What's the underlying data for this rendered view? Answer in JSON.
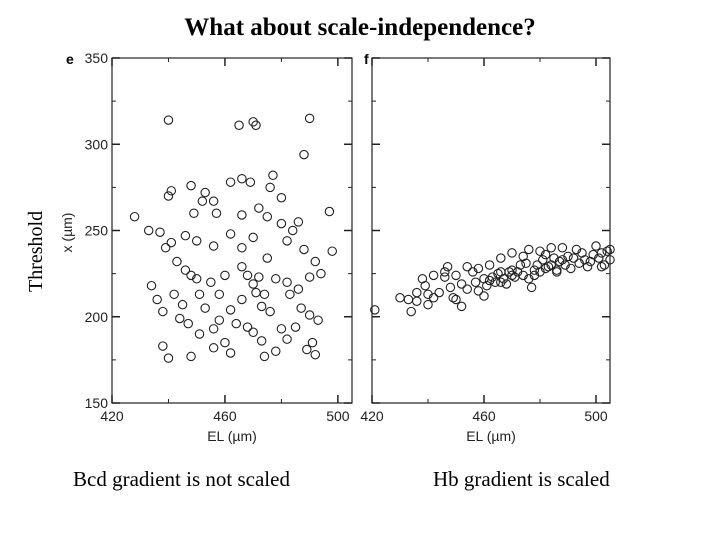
{
  "slide": {
    "title": "What about scale-independence?",
    "side_label": "Threshold",
    "captions": [
      "Bcd gradient is not scaled",
      "Hb gradient is scaled"
    ]
  },
  "chart_data": [
    {
      "type": "scatter",
      "panel_letter": "e",
      "xlabel": "EL (µm)",
      "ylabel": "x (µm)",
      "xlim": [
        420,
        505
      ],
      "ylim": [
        150,
        350
      ],
      "x_ticks": [
        420,
        460,
        500
      ],
      "y_ticks": [
        150,
        200,
        250,
        300,
        350
      ],
      "marker": "open-circle",
      "points": [
        [
          440,
          314
        ],
        [
          470,
          313
        ],
        [
          471,
          311
        ],
        [
          465,
          311
        ],
        [
          490,
          315
        ],
        [
          488,
          294
        ],
        [
          466,
          280
        ],
        [
          462,
          278
        ],
        [
          448,
          276
        ],
        [
          441,
          273
        ],
        [
          440,
          270
        ],
        [
          476,
          275
        ],
        [
          477,
          282
        ],
        [
          469,
          278
        ],
        [
          480,
          269
        ],
        [
          453,
          272
        ],
        [
          452,
          267
        ],
        [
          457,
          260
        ],
        [
          456,
          267
        ],
        [
          449,
          260
        ],
        [
          466,
          259
        ],
        [
          472,
          263
        ],
        [
          475,
          258
        ],
        [
          480,
          254
        ],
        [
          486,
          255
        ],
        [
          497,
          261
        ],
        [
          428,
          258
        ],
        [
          433,
          250
        ],
        [
          437,
          249
        ],
        [
          439,
          240
        ],
        [
          441,
          243
        ],
        [
          443,
          232
        ],
        [
          446,
          247
        ],
        [
          450,
          244
        ],
        [
          456,
          241
        ],
        [
          462,
          248
        ],
        [
          466,
          240
        ],
        [
          470,
          246
        ],
        [
          475,
          234
        ],
        [
          482,
          244
        ],
        [
          484,
          250
        ],
        [
          488,
          239
        ],
        [
          492,
          232
        ],
        [
          494,
          225
        ],
        [
          498,
          238
        ],
        [
          446,
          227
        ],
        [
          448,
          224
        ],
        [
          450,
          222
        ],
        [
          455,
          220
        ],
        [
          460,
          224
        ],
        [
          466,
          229
        ],
        [
          468,
          224
        ],
        [
          470,
          219
        ],
        [
          472,
          223
        ],
        [
          474,
          213
        ],
        [
          478,
          222
        ],
        [
          482,
          220
        ],
        [
          486,
          216
        ],
        [
          490,
          223
        ],
        [
          434,
          218
        ],
        [
          436,
          210
        ],
        [
          442,
          213
        ],
        [
          445,
          207
        ],
        [
          451,
          213
        ],
        [
          453,
          205
        ],
        [
          458,
          213
        ],
        [
          462,
          204
        ],
        [
          466,
          210
        ],
        [
          471,
          214
        ],
        [
          473,
          206
        ],
        [
          476,
          203
        ],
        [
          483,
          213
        ],
        [
          487,
          205
        ],
        [
          490,
          201
        ],
        [
          493,
          198
        ],
        [
          438,
          203
        ],
        [
          447,
          196
        ],
        [
          451,
          190
        ],
        [
          456,
          193
        ],
        [
          460,
          185
        ],
        [
          464,
          196
        ],
        [
          468,
          194
        ],
        [
          470,
          191
        ],
        [
          473,
          186
        ],
        [
          478,
          180
        ],
        [
          482,
          187
        ],
        [
          485,
          194
        ],
        [
          489,
          181
        ],
        [
          492,
          178
        ],
        [
          440,
          176
        ],
        [
          448,
          177
        ],
        [
          456,
          182
        ],
        [
          462,
          179
        ],
        [
          474,
          177
        ],
        [
          480,
          193
        ],
        [
          491,
          185
        ],
        [
          438,
          183
        ],
        [
          444,
          199
        ],
        [
          458,
          198
        ]
      ]
    },
    {
      "type": "scatter",
      "panel_letter": "f",
      "xlabel": "EL (µm)",
      "ylabel": "",
      "xlim": [
        420,
        505
      ],
      "ylim": [
        150,
        350
      ],
      "x_ticks": [
        420,
        460,
        500
      ],
      "y_ticks": [
        150,
        200,
        250,
        300,
        350
      ],
      "marker": "open-circle",
      "points": [
        [
          421,
          204
        ],
        [
          430,
          211
        ],
        [
          433,
          210
        ],
        [
          434,
          203
        ],
        [
          436,
          214
        ],
        [
          439,
          218
        ],
        [
          440,
          213
        ],
        [
          442,
          211
        ],
        [
          444,
          214
        ],
        [
          446,
          223
        ],
        [
          447,
          229
        ],
        [
          448,
          217
        ],
        [
          449,
          211
        ],
        [
          450,
          210
        ],
        [
          452,
          206
        ],
        [
          454,
          216
        ],
        [
          456,
          226
        ],
        [
          457,
          220
        ],
        [
          458,
          215
        ],
        [
          460,
          212
        ],
        [
          461,
          218
        ],
        [
          462,
          221
        ],
        [
          463,
          223
        ],
        [
          464,
          220
        ],
        [
          465,
          225
        ],
        [
          466,
          226
        ],
        [
          467,
          222
        ],
        [
          468,
          219
        ],
        [
          469,
          226
        ],
        [
          470,
          227
        ],
        [
          471,
          223
        ],
        [
          472,
          226
        ],
        [
          473,
          230
        ],
        [
          474,
          224
        ],
        [
          475,
          231
        ],
        [
          476,
          222
        ],
        [
          477,
          217
        ],
        [
          478,
          227
        ],
        [
          479,
          230
        ],
        [
          480,
          226
        ],
        [
          481,
          233
        ],
        [
          482,
          228
        ],
        [
          483,
          229
        ],
        [
          484,
          230
        ],
        [
          485,
          234
        ],
        [
          486,
          227
        ],
        [
          487,
          232
        ],
        [
          488,
          233
        ],
        [
          489,
          230
        ],
        [
          490,
          235
        ],
        [
          491,
          228
        ],
        [
          492,
          234
        ],
        [
          493,
          239
        ],
        [
          494,
          231
        ],
        [
          495,
          237
        ],
        [
          496,
          233
        ],
        [
          497,
          229
        ],
        [
          498,
          232
        ],
        [
          499,
          236
        ],
        [
          500,
          241
        ],
        [
          501,
          234
        ],
        [
          502,
          237
        ],
        [
          503,
          230
        ],
        [
          504,
          238
        ],
        [
          505,
          233
        ],
        [
          486,
          226
        ],
        [
          476,
          239
        ],
        [
          482,
          236
        ],
        [
          484,
          240
        ],
        [
          488,
          240
        ],
        [
          470,
          237
        ],
        [
          474,
          235
        ],
        [
          466,
          234
        ],
        [
          462,
          230
        ],
        [
          458,
          228
        ],
        [
          454,
          229
        ],
        [
          450,
          224
        ],
        [
          446,
          226
        ],
        [
          442,
          224
        ],
        [
          438,
          222
        ],
        [
          466,
          220
        ],
        [
          470,
          224
        ],
        [
          478,
          224
        ],
        [
          480,
          238
        ],
        [
          502,
          229
        ],
        [
          505,
          239
        ],
        [
          436,
          209
        ],
        [
          440,
          207
        ],
        [
          452,
          219
        ],
        [
          460,
          222
        ]
      ]
    }
  ]
}
